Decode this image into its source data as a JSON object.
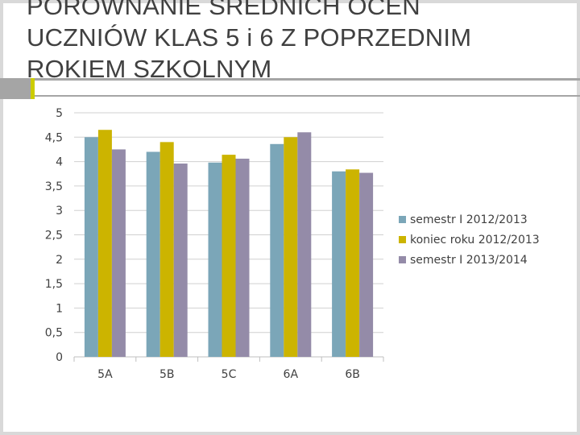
{
  "slide": {
    "title_lines": [
      "PORÓWNANIE ŚREDNICH OCEN",
      "UCZNIÓW KLAS 5 i 6 Z POPRZEDNIM",
      "ROKIEM SZKOLNYM"
    ]
  },
  "chart_data": {
    "type": "bar",
    "title": "",
    "xlabel": "",
    "ylabel": "",
    "categories": [
      "5A",
      "5B",
      "5C",
      "6A",
      "6B"
    ],
    "series": [
      {
        "name": "semestr I 2012/2013",
        "color": "#7ba6b8",
        "values": [
          4.5,
          4.2,
          3.98,
          4.36,
          3.8
        ]
      },
      {
        "name": "koniec roku 2012/2013",
        "color": "#ccb400",
        "values": [
          4.65,
          4.4,
          4.14,
          4.5,
          3.84
        ]
      },
      {
        "name": "semestr I 2013/2014",
        "color": "#948ba8",
        "values": [
          4.25,
          3.96,
          4.06,
          4.6,
          3.77
        ]
      }
    ],
    "ylim": [
      0,
      5
    ],
    "yticks": [
      "0",
      "0,5",
      "1",
      "1,5",
      "2",
      "2,5",
      "3",
      "3,5",
      "4",
      "4,5",
      "5"
    ],
    "grid": true,
    "legend": "right"
  }
}
